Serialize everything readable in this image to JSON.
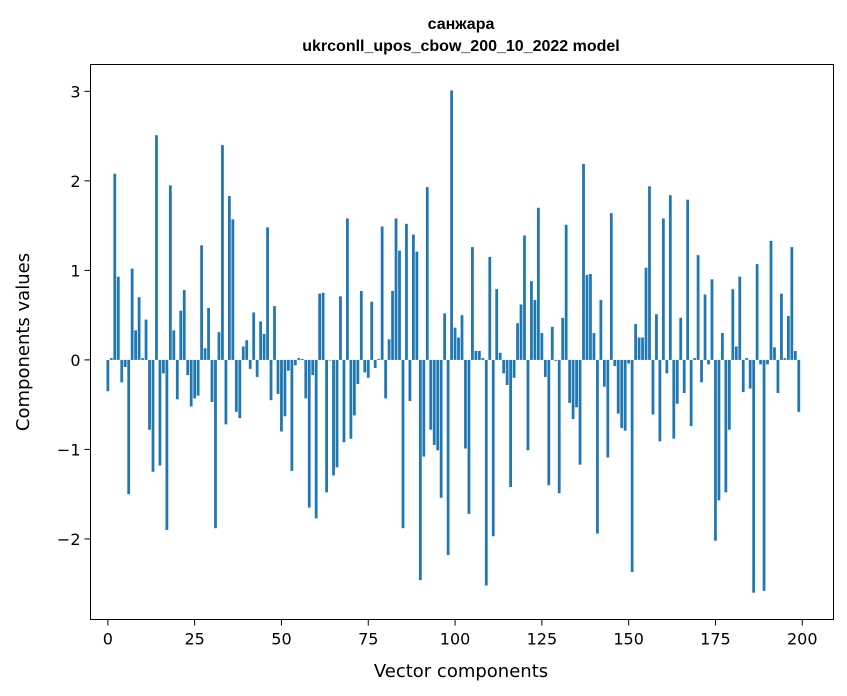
{
  "chart_data": {
    "type": "bar",
    "title": "санжара",
    "subtitle": "ukrconll_upos_cbow_200_10_2022 model",
    "xlabel": "Vector components",
    "ylabel": "Components values",
    "xlim": [
      -5,
      209
    ],
    "ylim": [
      -2.9,
      3.3
    ],
    "xticks": [
      0,
      25,
      50,
      75,
      100,
      125,
      150,
      175,
      200
    ],
    "yticks": [
      -2,
      -1,
      0,
      1,
      2,
      3
    ],
    "ytick_labels": [
      "−2",
      "−1",
      "0",
      "1",
      "2",
      "3"
    ],
    "bar_color": "#1f77b4",
    "grid": false,
    "x": [
      0,
      1,
      2,
      3,
      4,
      5,
      6,
      7,
      8,
      9,
      10,
      11,
      12,
      13,
      14,
      15,
      16,
      17,
      18,
      19,
      20,
      21,
      22,
      23,
      24,
      25,
      26,
      27,
      28,
      29,
      30,
      31,
      32,
      33,
      34,
      35,
      36,
      37,
      38,
      39,
      40,
      41,
      42,
      43,
      44,
      45,
      46,
      47,
      48,
      49,
      50,
      51,
      52,
      53,
      54,
      55,
      56,
      57,
      58,
      59,
      60,
      61,
      62,
      63,
      64,
      65,
      66,
      67,
      68,
      69,
      70,
      71,
      72,
      73,
      74,
      75,
      76,
      77,
      78,
      79,
      80,
      81,
      82,
      83,
      84,
      85,
      86,
      87,
      88,
      89,
      90,
      91,
      92,
      93,
      94,
      95,
      96,
      97,
      98,
      99,
      100,
      101,
      102,
      103,
      104,
      105,
      106,
      107,
      108,
      109,
      110,
      111,
      112,
      113,
      114,
      115,
      116,
      117,
      118,
      119,
      120,
      121,
      122,
      123,
      124,
      125,
      126,
      127,
      128,
      129,
      130,
      131,
      132,
      133,
      134,
      135,
      136,
      137,
      138,
      139,
      140,
      141,
      142,
      143,
      144,
      145,
      146,
      147,
      148,
      149,
      150,
      151,
      152,
      153,
      154,
      155,
      156,
      157,
      158,
      159,
      160,
      161,
      162,
      163,
      164,
      165,
      166,
      167,
      168,
      169,
      170,
      171,
      172,
      173,
      174,
      175,
      176,
      177,
      178,
      179,
      180,
      181,
      182,
      183,
      184,
      185,
      186,
      187,
      188,
      189,
      190,
      191,
      192,
      193,
      194,
      195,
      196,
      197,
      198,
      199
    ],
    "values": [
      -0.35,
      0.02,
      2.08,
      0.93,
      -0.25,
      -0.08,
      -1.5,
      1.02,
      0.33,
      0.7,
      0.02,
      0.45,
      -0.78,
      -1.25,
      2.51,
      -1.18,
      -0.15,
      -1.9,
      1.95,
      0.33,
      -0.44,
      0.55,
      0.78,
      -0.17,
      -0.52,
      -0.43,
      -0.4,
      1.28,
      0.13,
      0.58,
      -0.47,
      -1.88,
      0.31,
      2.4,
      -0.72,
      1.83,
      1.57,
      -0.58,
      -0.65,
      0.15,
      0.22,
      -0.1,
      0.53,
      -0.19,
      0.43,
      0.29,
      1.48,
      -0.45,
      0.6,
      -0.38,
      -0.8,
      -0.63,
      -0.12,
      -1.24,
      -0.06,
      0.02,
      0.01,
      -0.43,
      -1.65,
      -0.17,
      -1.77,
      0.74,
      0.75,
      -1.48,
      0.0,
      -1.29,
      -1.2,
      0.71,
      -0.92,
      1.58,
      -0.88,
      -0.62,
      -0.27,
      0.77,
      -0.14,
      -0.2,
      0.65,
      -0.09,
      0.01,
      1.49,
      -0.43,
      0.23,
      0.77,
      1.58,
      1.22,
      -1.88,
      1.52,
      -0.46,
      1.4,
      1.21,
      -2.46,
      -1.08,
      1.93,
      -0.78,
      -0.95,
      -1.01,
      -1.54,
      0.52,
      -2.18,
      3.01,
      0.36,
      0.25,
      0.5,
      -0.99,
      -1.72,
      1.26,
      0.1,
      0.1,
      0.02,
      -2.52,
      1.15,
      -1.97,
      0.79,
      0.08,
      -0.15,
      -0.28,
      -1.42,
      -0.2,
      0.41,
      0.62,
      1.39,
      -1.01,
      0.88,
      0.67,
      1.7,
      0.3,
      -0.19,
      -1.4,
      0.37,
      -0.01,
      -1.49,
      0.47,
      1.51,
      -0.48,
      -0.66,
      -0.53,
      -1.17,
      2.19,
      0.95,
      0.96,
      0.3,
      -1.94,
      0.67,
      -0.3,
      -1.09,
      1.64,
      -0.07,
      -0.6,
      -0.76,
      -0.79,
      -0.04,
      -2.37,
      0.4,
      0.25,
      0.25,
      1.03,
      1.94,
      -0.61,
      0.51,
      -0.91,
      1.58,
      -0.15,
      1.84,
      -0.88,
      -0.49,
      0.47,
      -0.37,
      1.79,
      -0.74,
      0.02,
      1.17,
      -0.25,
      0.73,
      -0.05,
      0.9,
      -2.02,
      -1.57,
      0.3,
      -1.48,
      -0.78,
      0.79,
      0.15,
      0.93,
      -0.36,
      0.02,
      -0.32,
      -2.6,
      1.07,
      -0.05,
      -2.58,
      -0.05,
      1.33,
      0.14,
      -0.37,
      0.74,
      0.02,
      0.49,
      1.26,
      0.1,
      -0.58
    ]
  }
}
